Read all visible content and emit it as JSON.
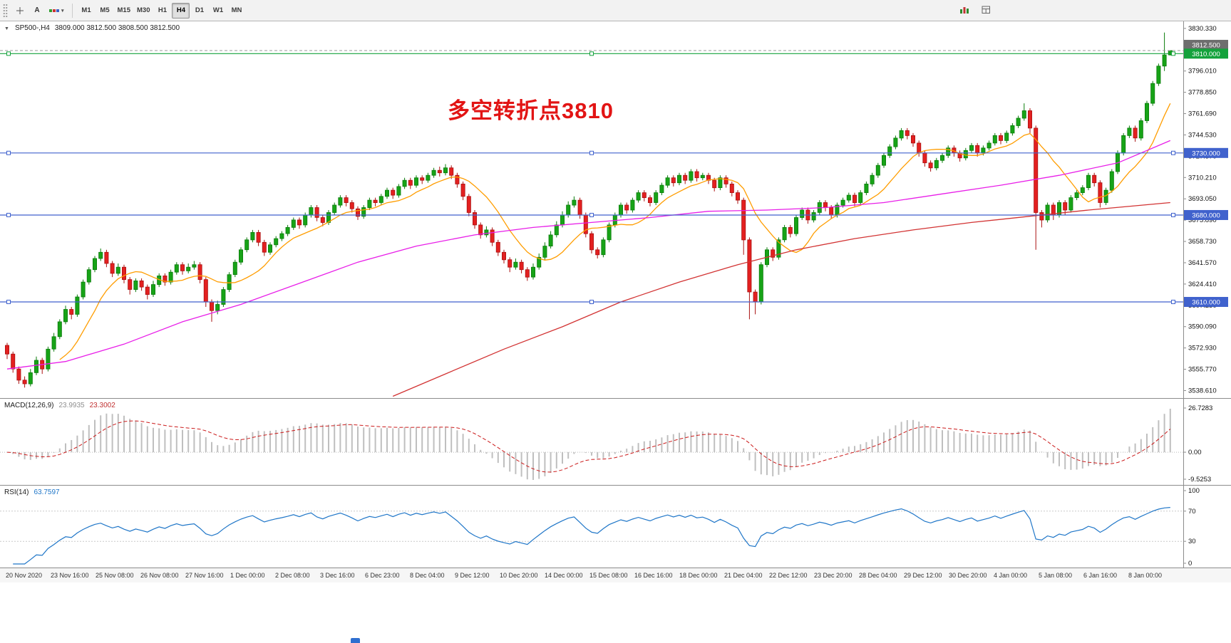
{
  "toolbar": {
    "cursor_label": "A",
    "caret_icon": "▾",
    "timeframes": [
      "M1",
      "M5",
      "M15",
      "M30",
      "H1",
      "H4",
      "D1",
      "W1",
      "MN"
    ],
    "active_timeframe": "H4"
  },
  "chart": {
    "title": "SP500-,H4",
    "ohlc": "3809.000 3812.500 3808.500 3812.500",
    "one_click_icon": "▼",
    "annotation": "多空转折点3810",
    "annotation_color": "#e21414"
  },
  "chart_data": {
    "type": "candlestick",
    "symbol": "SP500-",
    "timeframe": "H4",
    "ohlc_current": {
      "open": 3809.0,
      "high": 3812.5,
      "low": 3808.5,
      "close": 3812.5
    },
    "ylim": [
      3532,
      3836
    ],
    "colors": {
      "up": "#17a317",
      "up_border": "#0b7c0b",
      "down": "#e32020",
      "down_border": "#aa1111"
    },
    "current_price": 3812.5,
    "current_price_label": "3812.500",
    "price_axis_labels": [
      "3830.330",
      "3813.170",
      "3796.010",
      "3778.850",
      "3761.690",
      "3744.530",
      "3727.370",
      "3710.210",
      "3693.050",
      "3675.890",
      "3658.730",
      "3641.570",
      "3624.410",
      "3607.250",
      "3590.090",
      "3572.930",
      "3555.770",
      "3538.610"
    ],
    "hlines": [
      {
        "price": 3810,
        "label": "3810.000",
        "color": "#14a23c"
      },
      {
        "price": 3730,
        "label": "3730.000",
        "color": "#4062cd"
      },
      {
        "price": 3680,
        "label": "3680.000",
        "color": "#4062cd"
      },
      {
        "price": 3610,
        "label": "3610.000",
        "color": "#4062cd"
      }
    ],
    "moving_averages": {
      "fast": {
        "period": 10,
        "color": "#ff9d00"
      },
      "mid": {
        "color": "#e81ee8",
        "anchors": [
          [
            0,
            3556
          ],
          [
            10,
            3562
          ],
          [
            20,
            3576
          ],
          [
            30,
            3594
          ],
          [
            40,
            3608
          ],
          [
            50,
            3625
          ],
          [
            60,
            3642
          ],
          [
            70,
            3655
          ],
          [
            80,
            3664
          ],
          [
            90,
            3670
          ],
          [
            100,
            3674
          ],
          [
            110,
            3678
          ],
          [
            120,
            3683
          ],
          [
            130,
            3684
          ],
          [
            140,
            3686
          ],
          [
            150,
            3690
          ],
          [
            160,
            3697
          ],
          [
            170,
            3704
          ],
          [
            180,
            3712
          ],
          [
            190,
            3722
          ],
          [
            199,
            3740
          ]
        ]
      },
      "slow": {
        "color": "#d23333",
        "anchors": [
          [
            66,
            3534
          ],
          [
            75,
            3552
          ],
          [
            85,
            3572
          ],
          [
            95,
            3590
          ],
          [
            105,
            3610
          ],
          [
            115,
            3626
          ],
          [
            125,
            3640
          ],
          [
            135,
            3652
          ],
          [
            145,
            3661
          ],
          [
            155,
            3668
          ],
          [
            165,
            3674
          ],
          [
            175,
            3679
          ],
          [
            185,
            3684
          ],
          [
            199,
            3690
          ]
        ]
      }
    },
    "indicators": [
      {
        "name": "MACD",
        "label": "MACD(12,26,9)",
        "params": [
          12,
          26,
          9
        ],
        "value_main": "23.9935",
        "value_signal": "23.3002",
        "axis": [
          "26.7283",
          "0.00",
          "-9.5253"
        ],
        "histogram_color": "#bfbfbf",
        "signal_color": "#cb1a1a"
      },
      {
        "name": "RSI",
        "label": "RSI(14)",
        "params": [
          14
        ],
        "value": "63.7597",
        "axis": [
          "100",
          "70",
          "30",
          "0"
        ],
        "levels": [
          70,
          30
        ],
        "color": "#1f76c8"
      }
    ],
    "time_labels": [
      "20 Nov 2020",
      "23 Nov 16:00",
      "25 Nov 08:00",
      "26 Nov 08:00",
      "27 Nov 16:00",
      "1 Dec 00:00",
      "2 Dec 08:00",
      "3 Dec 16:00",
      "6 Dec 23:00",
      "8 Dec 04:00",
      "9 Dec 12:00",
      "10 Dec 20:00",
      "14 Dec 00:00",
      "15 Dec 08:00",
      "16 Dec 16:00",
      "18 Dec 00:00",
      "21 Dec 04:00",
      "22 Dec 12:00",
      "23 Dec 20:00",
      "28 Dec 04:00",
      "29 Dec 12:00",
      "30 Dec 20:00",
      "4 Jan 00:00",
      "5 Jan 08:00",
      "6 Jan 16:00",
      "8 Jan 00:00"
    ],
    "candles": [
      [
        3575,
        3577,
        3564,
        3568
      ],
      [
        3568,
        3570,
        3553,
        3556
      ],
      [
        3556,
        3558,
        3544,
        3547
      ],
      [
        3547,
        3550,
        3541,
        3544
      ],
      [
        3544,
        3556,
        3542,
        3553
      ],
      [
        3553,
        3566,
        3551,
        3563
      ],
      [
        3563,
        3565,
        3552,
        3556
      ],
      [
        3556,
        3574,
        3554,
        3572
      ],
      [
        3572,
        3585,
        3570,
        3582
      ],
      [
        3582,
        3596,
        3580,
        3594
      ],
      [
        3594,
        3607,
        3592,
        3604
      ],
      [
        3604,
        3606,
        3596,
        3600
      ],
      [
        3600,
        3616,
        3598,
        3614
      ],
      [
        3614,
        3628,
        3612,
        3626
      ],
      [
        3626,
        3638,
        3624,
        3636
      ],
      [
        3636,
        3647,
        3634,
        3645
      ],
      [
        3645,
        3653,
        3643,
        3650
      ],
      [
        3650,
        3652,
        3638,
        3641
      ],
      [
        3641,
        3643,
        3630,
        3633
      ],
      [
        3633,
        3641,
        3631,
        3638
      ],
      [
        3638,
        3640,
        3625,
        3628
      ],
      [
        3628,
        3630,
        3616,
        3620
      ],
      [
        3620,
        3629,
        3618,
        3627
      ],
      [
        3627,
        3629,
        3619,
        3622
      ],
      [
        3622,
        3624,
        3612,
        3616
      ],
      [
        3616,
        3627,
        3614,
        3624
      ],
      [
        3624,
        3633,
        3622,
        3631
      ],
      [
        3631,
        3633,
        3623,
        3626
      ],
      [
        3626,
        3636,
        3624,
        3634
      ],
      [
        3634,
        3642,
        3632,
        3640
      ],
      [
        3640,
        3642,
        3632,
        3635
      ],
      [
        3635,
        3641,
        3633,
        3638
      ],
      [
        3638,
        3643,
        3636,
        3640
      ],
      [
        3640,
        3642,
        3625,
        3628
      ],
      [
        3628,
        3630,
        3606,
        3610
      ],
      [
        3610,
        3612,
        3594,
        3603
      ],
      [
        3603,
        3611,
        3600,
        3608
      ],
      [
        3608,
        3622,
        3606,
        3620
      ],
      [
        3620,
        3634,
        3618,
        3632
      ],
      [
        3632,
        3644,
        3630,
        3642
      ],
      [
        3642,
        3654,
        3640,
        3652
      ],
      [
        3652,
        3662,
        3650,
        3660
      ],
      [
        3660,
        3668,
        3658,
        3666
      ],
      [
        3666,
        3668,
        3655,
        3658
      ],
      [
        3658,
        3660,
        3647,
        3650
      ],
      [
        3650,
        3658,
        3648,
        3656
      ],
      [
        3656,
        3663,
        3654,
        3661
      ],
      [
        3661,
        3667,
        3659,
        3665
      ],
      [
        3665,
        3672,
        3663,
        3670
      ],
      [
        3670,
        3678,
        3668,
        3676
      ],
      [
        3676,
        3678,
        3669,
        3672
      ],
      [
        3672,
        3682,
        3670,
        3680
      ],
      [
        3680,
        3688,
        3678,
        3686
      ],
      [
        3686,
        3688,
        3675,
        3678
      ],
      [
        3678,
        3680,
        3671,
        3674
      ],
      [
        3674,
        3684,
        3672,
        3682
      ],
      [
        3682,
        3690,
        3680,
        3688
      ],
      [
        3688,
        3696,
        3686,
        3694
      ],
      [
        3694,
        3696,
        3687,
        3690
      ],
      [
        3690,
        3692,
        3682,
        3685
      ],
      [
        3685,
        3687,
        3676,
        3679
      ],
      [
        3679,
        3688,
        3677,
        3686
      ],
      [
        3686,
        3694,
        3684,
        3692
      ],
      [
        3692,
        3694,
        3687,
        3690
      ],
      [
        3690,
        3697,
        3688,
        3695
      ],
      [
        3695,
        3702,
        3693,
        3700
      ],
      [
        3700,
        3702,
        3693,
        3696
      ],
      [
        3696,
        3705,
        3694,
        3703
      ],
      [
        3703,
        3710,
        3701,
        3708
      ],
      [
        3708,
        3710,
        3701,
        3704
      ],
      [
        3704,
        3712,
        3702,
        3710
      ],
      [
        3710,
        3712,
        3705,
        3708
      ],
      [
        3708,
        3714,
        3706,
        3712
      ],
      [
        3712,
        3718,
        3710,
        3716
      ],
      [
        3716,
        3719,
        3711,
        3714
      ],
      [
        3714,
        3721,
        3712,
        3718
      ],
      [
        3718,
        3720,
        3709,
        3712
      ],
      [
        3712,
        3714,
        3702,
        3705
      ],
      [
        3705,
        3707,
        3692,
        3695
      ],
      [
        3695,
        3697,
        3679,
        3682
      ],
      [
        3682,
        3684,
        3669,
        3672
      ],
      [
        3672,
        3674,
        3661,
        3664
      ],
      [
        3664,
        3671,
        3662,
        3668
      ],
      [
        3668,
        3670,
        3655,
        3658
      ],
      [
        3658,
        3660,
        3647,
        3650
      ],
      [
        3650,
        3652,
        3641,
        3644
      ],
      [
        3644,
        3646,
        3634,
        3638
      ],
      [
        3638,
        3645,
        3636,
        3642
      ],
      [
        3642,
        3644,
        3633,
        3636
      ],
      [
        3636,
        3638,
        3627,
        3630
      ],
      [
        3630,
        3641,
        3628,
        3638
      ],
      [
        3638,
        3649,
        3636,
        3646
      ],
      [
        3646,
        3658,
        3644,
        3655
      ],
      [
        3655,
        3667,
        3653,
        3664
      ],
      [
        3664,
        3675,
        3662,
        3672
      ],
      [
        3672,
        3683,
        3670,
        3680
      ],
      [
        3680,
        3691,
        3678,
        3688
      ],
      [
        3688,
        3695,
        3686,
        3692
      ],
      [
        3692,
        3694,
        3677,
        3680
      ],
      [
        3680,
        3682,
        3662,
        3665
      ],
      [
        3665,
        3667,
        3649,
        3652
      ],
      [
        3652,
        3654,
        3645,
        3648
      ],
      [
        3648,
        3662,
        3646,
        3660
      ],
      [
        3660,
        3674,
        3658,
        3672
      ],
      [
        3672,
        3682,
        3670,
        3680
      ],
      [
        3680,
        3690,
        3678,
        3688
      ],
      [
        3688,
        3690,
        3681,
        3684
      ],
      [
        3684,
        3694,
        3682,
        3692
      ],
      [
        3692,
        3700,
        3690,
        3698
      ],
      [
        3698,
        3700,
        3691,
        3694
      ],
      [
        3694,
        3696,
        3687,
        3690
      ],
      [
        3690,
        3700,
        3688,
        3698
      ],
      [
        3698,
        3706,
        3696,
        3704
      ],
      [
        3704,
        3712,
        3702,
        3710
      ],
      [
        3710,
        3712,
        3703,
        3706
      ],
      [
        3706,
        3714,
        3704,
        3712
      ],
      [
        3712,
        3714,
        3705,
        3708
      ],
      [
        3708,
        3717,
        3706,
        3715
      ],
      [
        3715,
        3717,
        3707,
        3710
      ],
      [
        3710,
        3714,
        3708,
        3712
      ],
      [
        3712,
        3714,
        3705,
        3708
      ],
      [
        3708,
        3710,
        3699,
        3702
      ],
      [
        3702,
        3712,
        3700,
        3710
      ],
      [
        3710,
        3712,
        3702,
        3705
      ],
      [
        3705,
        3707,
        3695,
        3698
      ],
      [
        3698,
        3700,
        3689,
        3692
      ],
      [
        3692,
        3694,
        3648,
        3660
      ],
      [
        3660,
        3662,
        3596,
        3618
      ],
      [
        3618,
        3620,
        3600,
        3610
      ],
      [
        3610,
        3642,
        3608,
        3640
      ],
      [
        3640,
        3654,
        3638,
        3652
      ],
      [
        3652,
        3654,
        3643,
        3646
      ],
      [
        3646,
        3662,
        3644,
        3660
      ],
      [
        3660,
        3672,
        3658,
        3670
      ],
      [
        3670,
        3672,
        3662,
        3665
      ],
      [
        3665,
        3680,
        3663,
        3678
      ],
      [
        3678,
        3686,
        3676,
        3684
      ],
      [
        3684,
        3686,
        3673,
        3676
      ],
      [
        3676,
        3684,
        3674,
        3682
      ],
      [
        3682,
        3692,
        3680,
        3690
      ],
      [
        3690,
        3692,
        3683,
        3686
      ],
      [
        3686,
        3688,
        3677,
        3680
      ],
      [
        3680,
        3690,
        3678,
        3688
      ],
      [
        3688,
        3694,
        3686,
        3692
      ],
      [
        3692,
        3698,
        3690,
        3696
      ],
      [
        3696,
        3698,
        3687,
        3690
      ],
      [
        3690,
        3700,
        3688,
        3698
      ],
      [
        3698,
        3707,
        3696,
        3705
      ],
      [
        3705,
        3714,
        3703,
        3712
      ],
      [
        3712,
        3722,
        3710,
        3720
      ],
      [
        3720,
        3730,
        3718,
        3728
      ],
      [
        3728,
        3737,
        3726,
        3735
      ],
      [
        3735,
        3744,
        3733,
        3742
      ],
      [
        3742,
        3750,
        3740,
        3748
      ],
      [
        3748,
        3750,
        3741,
        3744
      ],
      [
        3744,
        3746,
        3735,
        3738
      ],
      [
        3738,
        3740,
        3727,
        3730
      ],
      [
        3730,
        3732,
        3719,
        3722
      ],
      [
        3722,
        3724,
        3715,
        3718
      ],
      [
        3718,
        3726,
        3716,
        3724
      ],
      [
        3724,
        3730,
        3722,
        3728
      ],
      [
        3728,
        3736,
        3726,
        3734
      ],
      [
        3734,
        3736,
        3727,
        3730
      ],
      [
        3730,
        3732,
        3723,
        3726
      ],
      [
        3726,
        3734,
        3724,
        3732
      ],
      [
        3732,
        3738,
        3730,
        3736
      ],
      [
        3736,
        3738,
        3727,
        3730
      ],
      [
        3730,
        3736,
        3728,
        3734
      ],
      [
        3734,
        3740,
        3732,
        3738
      ],
      [
        3738,
        3746,
        3736,
        3744
      ],
      [
        3744,
        3746,
        3737,
        3740
      ],
      [
        3740,
        3748,
        3738,
        3746
      ],
      [
        3746,
        3754,
        3744,
        3752
      ],
      [
        3752,
        3760,
        3750,
        3758
      ],
      [
        3758,
        3770,
        3756,
        3764
      ],
      [
        3764,
        3766,
        3746,
        3750
      ],
      [
        3750,
        3752,
        3652,
        3682
      ],
      [
        3682,
        3684,
        3670,
        3676
      ],
      [
        3676,
        3690,
        3674,
        3688
      ],
      [
        3688,
        3690,
        3676,
        3680
      ],
      [
        3680,
        3692,
        3678,
        3690
      ],
      [
        3690,
        3692,
        3680,
        3684
      ],
      [
        3684,
        3696,
        3682,
        3694
      ],
      [
        3694,
        3700,
        3692,
        3698
      ],
      [
        3698,
        3704,
        3696,
        3702
      ],
      [
        3702,
        3714,
        3700,
        3712
      ],
      [
        3712,
        3714,
        3703,
        3706
      ],
      [
        3706,
        3708,
        3686,
        3690
      ],
      [
        3690,
        3702,
        3688,
        3700
      ],
      [
        3700,
        3717,
        3698,
        3715
      ],
      [
        3715,
        3732,
        3713,
        3730
      ],
      [
        3730,
        3746,
        3728,
        3744
      ],
      [
        3744,
        3752,
        3742,
        3750
      ],
      [
        3750,
        3752,
        3739,
        3742
      ],
      [
        3742,
        3758,
        3740,
        3756
      ],
      [
        3756,
        3772,
        3754,
        3770
      ],
      [
        3770,
        3788,
        3768,
        3786
      ],
      [
        3786,
        3802,
        3784,
        3800
      ],
      [
        3800,
        3827,
        3796,
        3809
      ],
      [
        3809,
        3812.5,
        3808.5,
        3812.5
      ]
    ]
  }
}
